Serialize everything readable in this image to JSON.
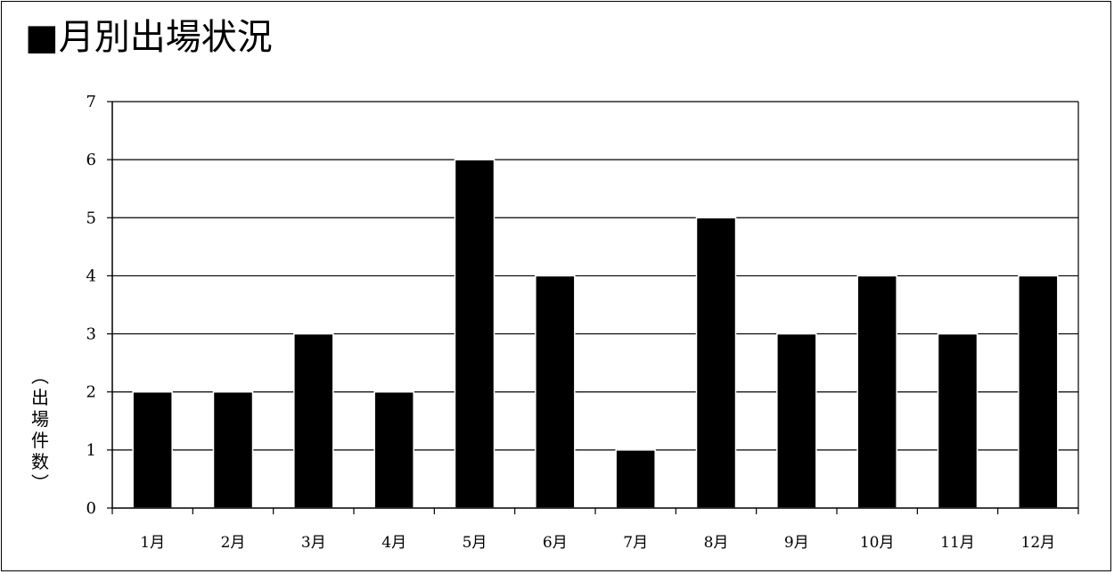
{
  "title": "■月別出場状況",
  "chart_data": {
    "type": "bar",
    "title": "■月別出場状況",
    "xlabel": "",
    "ylabel": "（出場件数）",
    "categories": [
      "1月",
      "2月",
      "3月",
      "4月",
      "5月",
      "6月",
      "7月",
      "8月",
      "9月",
      "10月",
      "11月",
      "12月"
    ],
    "values": [
      2,
      2,
      3,
      2,
      6,
      4,
      1,
      5,
      3,
      4,
      3,
      4
    ],
    "ylim": [
      0,
      7
    ],
    "yticks": [
      "0",
      "1",
      "2",
      "3",
      "4",
      "5",
      "6",
      "7"
    ],
    "grid": true,
    "bar_color": "#000000",
    "legend": false
  }
}
